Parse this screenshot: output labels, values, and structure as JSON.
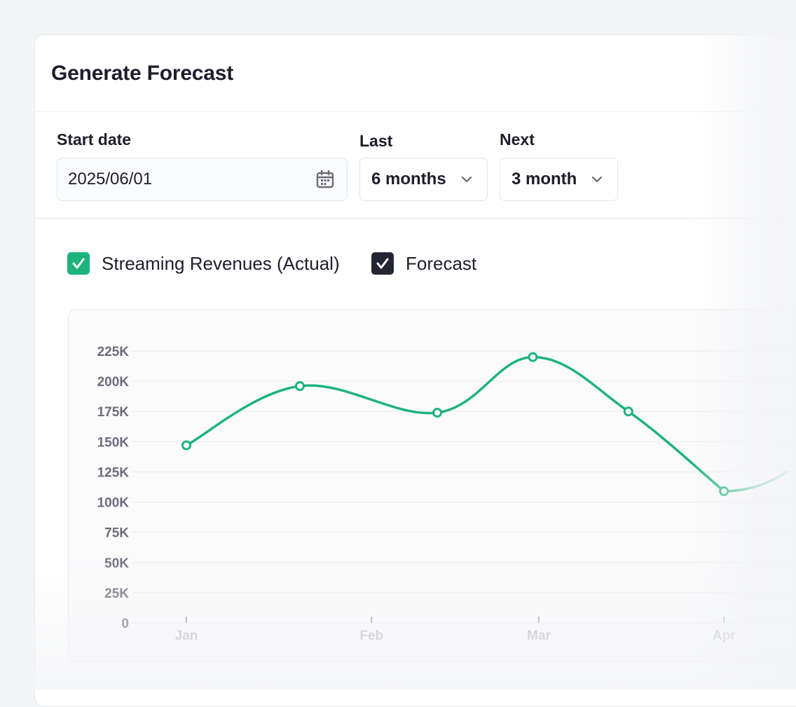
{
  "card": {
    "title": "Generate Forecast"
  },
  "controls": {
    "start_date": {
      "label": "Start date",
      "value": "2025/06/01",
      "icon": "calendar-icon"
    },
    "last": {
      "label": "Last",
      "value": "6 months"
    },
    "next": {
      "label": "Next",
      "value": "3 month"
    }
  },
  "legend": {
    "actual": {
      "label": "Streaming Revenues (Actual)",
      "checked": true,
      "color": "#1db37c"
    },
    "forecast": {
      "label": "Forecast",
      "checked": true,
      "color": "#252433"
    }
  },
  "colors": {
    "accent": "#1db37c",
    "dark": "#252433"
  },
  "chart_data": {
    "type": "line",
    "x_ticks": [
      "Jan",
      "Feb",
      "Mar",
      "Apr"
    ],
    "y_ticks": [
      "0",
      "25K",
      "50K",
      "75K",
      "100K",
      "125K",
      "150K",
      "175K",
      "200K",
      "225K"
    ],
    "ylim": [
      0,
      225000
    ],
    "grid": true,
    "series": [
      {
        "name": "Streaming Revenues (Actual)",
        "color": "#1db37c",
        "x": [
          "Jan",
          "Jan 20",
          "Feb 12",
          "Feb 28",
          "Mar 16",
          "Apr"
        ],
        "values": [
          147000,
          196000,
          174000,
          220000,
          175000,
          109000
        ]
      }
    ]
  }
}
